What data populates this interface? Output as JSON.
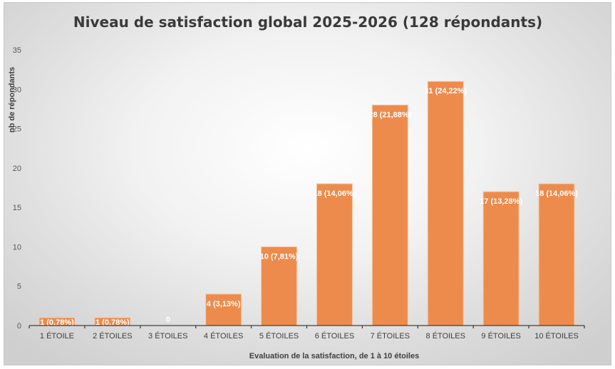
{
  "chart_data": {
    "type": "bar",
    "title": "Niveau de satisfaction global 2025-2026 (128 répondants)",
    "xlabel": "Evaluation de  la satisfaction, de 1 à 10 étoiles",
    "ylabel": "nb de répondants",
    "ylim": [
      0,
      35
    ],
    "yticks": [
      0,
      5,
      10,
      15,
      20,
      25,
      30,
      35
    ],
    "grid": false,
    "legend": "none",
    "categories": [
      "1 ÉTOILE",
      "2 ÉTOILES",
      "3 ÉTOILES",
      "4 ÉTOILES",
      "5 ÉTOILES",
      "6 ÉTOILES",
      "7 ÉTOILES",
      "8 ÉTOILES",
      "9 ÉTOILES",
      "10 ÉTOILES"
    ],
    "values": [
      1,
      1,
      0,
      4,
      10,
      18,
      28,
      31,
      17,
      18
    ],
    "data_labels": [
      "1 (0,78%)",
      "1 (0,78%)",
      "0",
      "4 (3,13%)",
      "10 (7,81%)",
      "18 (14,06%)",
      "28 (21,88%)",
      "31 (24,22%)",
      "17 (13,28%)",
      "18 (14,06%)"
    ],
    "colors": {
      "bar": "#ED8B4C",
      "bar_outline": "#F6C8A6",
      "axis": "#404040",
      "label_text": "#FFFFFF"
    }
  }
}
